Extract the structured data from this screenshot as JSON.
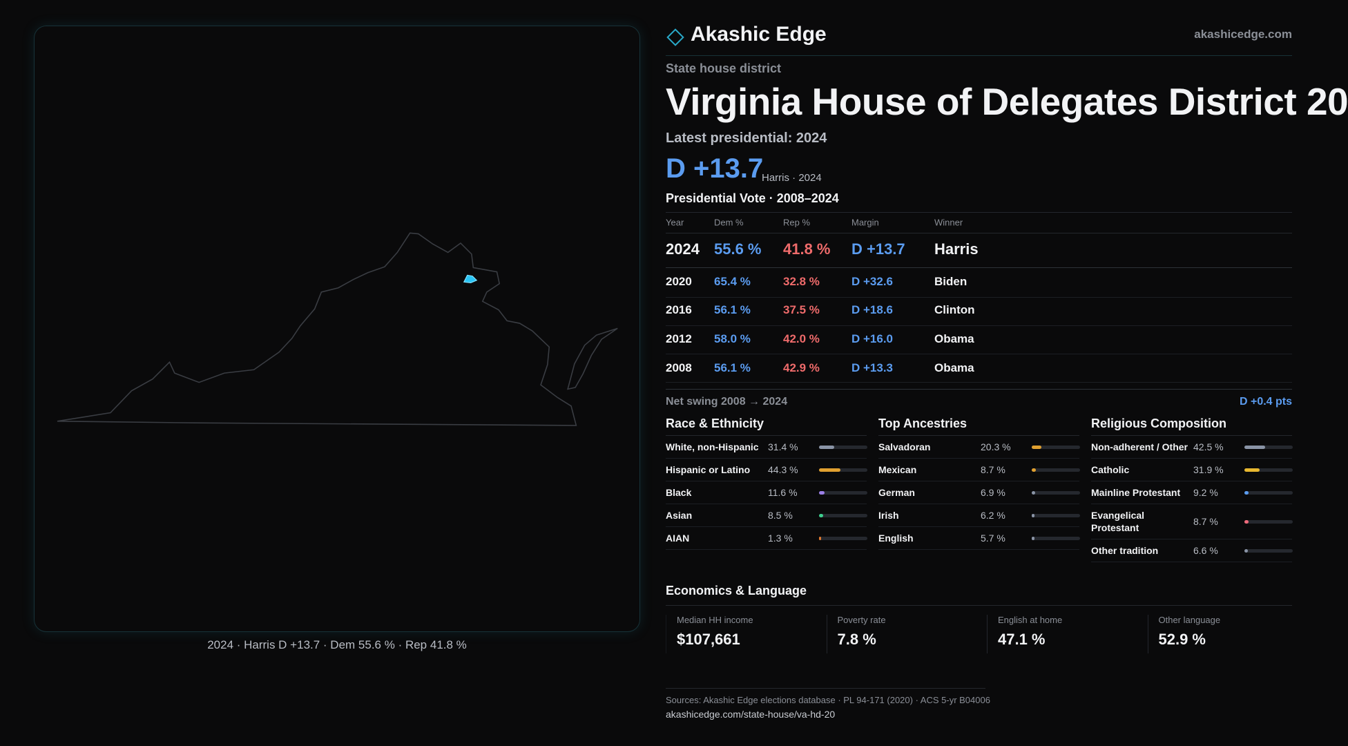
{
  "header": {
    "brand": "Akashic Edge",
    "site": "akashicedge.com"
  },
  "district": {
    "kind": "State house district",
    "title": "Virginia House of Delegates District 20",
    "latest_label": "Latest presidential: 2024",
    "margin": "D +13.7",
    "margin_note": "Harris · 2024"
  },
  "map_caption": "2024 · Harris D +13.7 · Dem 55.6 % · Rep 41.8 %",
  "presidential": {
    "title": "Presidential Vote · 2008–2024",
    "columns": [
      "Year",
      "Dem %",
      "Rep %",
      "Margin",
      "Winner"
    ],
    "rows": [
      [
        "2024",
        "55.6 %",
        "41.8 %",
        "D +13.7",
        "Harris"
      ],
      [
        "2020",
        "65.4 %",
        "32.8 %",
        "D +32.6",
        "Biden"
      ],
      [
        "2016",
        "56.1 %",
        "37.5 %",
        "D +18.6",
        "Clinton"
      ],
      [
        "2012",
        "58.0 %",
        "42.0 %",
        "D +16.0",
        "Obama"
      ],
      [
        "2008",
        "56.1 %",
        "42.9 %",
        "D +13.3",
        "Obama"
      ]
    ]
  },
  "net_swing": {
    "label": "Net swing 2008 → 2024",
    "value": "D +0.4 pts"
  },
  "race": {
    "title": "Race & Ethnicity",
    "rows": [
      {
        "label": "White, non-Hispanic",
        "value": 31.4,
        "value_label": "31.4 %",
        "color": "#8a94a6"
      },
      {
        "label": "Hispanic or Latino",
        "value": 44.3,
        "value_label": "44.3 %",
        "color": "#e0a030"
      },
      {
        "label": "Black",
        "value": 11.6,
        "value_label": "11.6 %",
        "color": "#9b7fe6"
      },
      {
        "label": "Asian",
        "value": 8.5,
        "value_label": "8.5 %",
        "color": "#3ecf8e"
      },
      {
        "label": "AIAN",
        "value": 1.3,
        "value_label": "1.3 %",
        "color": "#e07a30"
      }
    ]
  },
  "ancestry": {
    "title": "Top Ancestries",
    "rows": [
      {
        "label": "Salvadoran",
        "value": 20.3,
        "value_label": "20.3 %",
        "color": "#e0a030"
      },
      {
        "label": "Mexican",
        "value": 8.7,
        "value_label": "8.7 %",
        "color": "#e0a030"
      },
      {
        "label": "German",
        "value": 6.9,
        "value_label": "6.9 %",
        "color": "#8a94a6"
      },
      {
        "label": "Irish",
        "value": 6.2,
        "value_label": "6.2 %",
        "color": "#8a94a6"
      },
      {
        "label": "English",
        "value": 5.7,
        "value_label": "5.7 %",
        "color": "#8a94a6"
      }
    ]
  },
  "religion": {
    "title": "Religious Composition",
    "rows": [
      {
        "label": "Non-adherent / Other",
        "value": 42.5,
        "value_label": "42.5 %",
        "color": "#8a94a6"
      },
      {
        "label": "Catholic",
        "value": 31.9,
        "value_label": "31.9 %",
        "color": "#e8b830"
      },
      {
        "label": "Mainline Protestant",
        "value": 9.2,
        "value_label": "9.2 %",
        "color": "#5b9cf0"
      },
      {
        "label": "Evangelical Protestant",
        "value": 8.7,
        "value_label": "8.7 %",
        "color": "#ef6b7b"
      },
      {
        "label": "Other tradition",
        "value": 6.6,
        "value_label": "6.6 %",
        "color": "#8a94a6"
      }
    ]
  },
  "economics": {
    "title": "Economics & Language",
    "items": [
      {
        "label": "Median HH income",
        "value": "$107,661"
      },
      {
        "label": "Poverty rate",
        "value": "7.8 %"
      },
      {
        "label": "English at home",
        "value": "47.1 %"
      },
      {
        "label": "Other language",
        "value": "52.9 %"
      }
    ]
  },
  "sources": {
    "text": "Sources: Akashic Edge elections database · PL 94-171 (2020) · ACS 5-yr B04006",
    "url": "akashicedge.com/state-house/va-hd-20"
  }
}
